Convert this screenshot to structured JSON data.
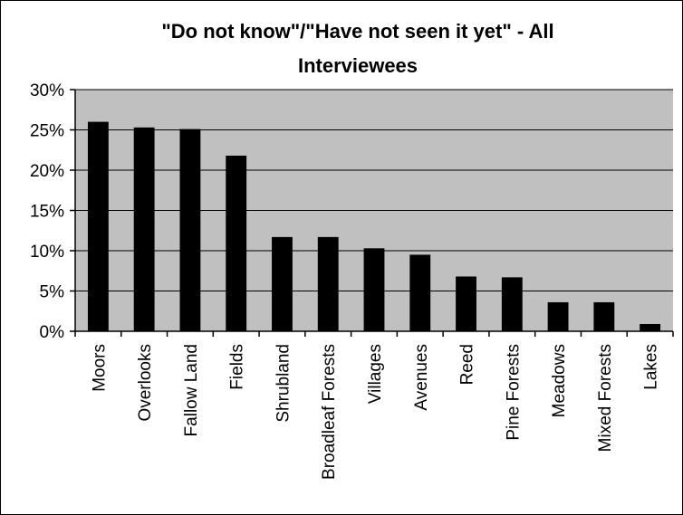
{
  "chart_data": {
    "type": "bar",
    "title_lines": [
      "\"Do not know\"/\"Have not seen it yet\" - All",
      "Interviewees"
    ],
    "categories": [
      "Moors",
      "Overlooks",
      "Fallow Land",
      "Fields",
      "Shrubland",
      "Broadleaf Forests",
      "Villages",
      "Avenues",
      "Reed",
      "Pine Forests",
      "Meadows",
      "Mixed Forests",
      "Lakes"
    ],
    "values": [
      26.0,
      25.3,
      25.1,
      21.8,
      11.7,
      11.7,
      10.3,
      9.5,
      6.8,
      6.7,
      3.6,
      3.6,
      0.9
    ],
    "ylim": [
      0,
      30
    ],
    "yticks": [
      "0%",
      "5%",
      "10%",
      "15%",
      "20%",
      "25%",
      "30%"
    ],
    "grid": true,
    "legend": "none",
    "colors": {
      "bar": "#000000",
      "plot_area": "#c0c0c0",
      "gridline": "#000000"
    }
  }
}
